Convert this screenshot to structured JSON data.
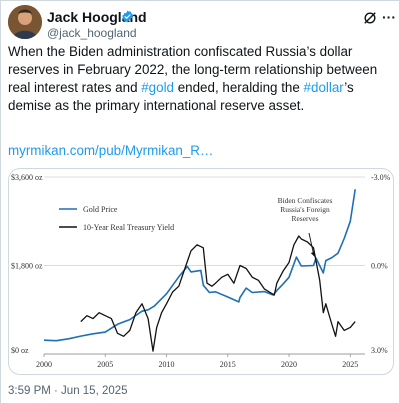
{
  "tweet": {
    "author_name": "Jack Hoogland",
    "author_handle": "@jack_hoogland",
    "verified_badge_color": "#1d9bf0",
    "body_part1": "When the Biden administration confiscated Russia’s dollar reserves in February 2022, the long-term relationship between real interest rates and ",
    "hashtag_gold": "#gold",
    "body_part2": " ended, heralding the ",
    "hashtag_dollar": "#dollar",
    "body_part3": "’s demise as the primary international reserve asset.",
    "link_text": "myrmikan.com/pub/Myrmikan_R…",
    "timestamp": "3:59 PM · Jun 15, 2025",
    "icons": {
      "grok": "grok-icon",
      "more": "more-icon",
      "verified": "verified-badge-icon"
    }
  },
  "chart_data": {
    "type": "line",
    "title": "",
    "xlabel": "",
    "ylabel": "",
    "x_ticks": [
      "2000",
      "2005",
      "2010",
      "2015",
      "2020",
      "2025"
    ],
    "xlim": [
      2000,
      2026.2
    ],
    "y_left_ticks": [
      "$3,600 oz",
      "$1,800 oz",
      "$0 oz"
    ],
    "y_left_lim": [
      0,
      3600
    ],
    "y_right_ticks": [
      "-3.0%",
      "0.0%",
      "3.0%"
    ],
    "y_right_lim": [
      3.0,
      -3.0
    ],
    "legend": {
      "placement": "top-left",
      "entries": [
        "Gold Price",
        "10-Year Real Treasury Yield"
      ]
    },
    "annotation": {
      "text_lines": [
        "Biden Confiscates",
        "Russia's Foreign",
        "Reserves"
      ],
      "x": 2022.1
    },
    "series": [
      {
        "name": "Gold Price",
        "color": "#1f6fb4",
        "axis": "left",
        "x": [
          2000,
          2001,
          2002,
          2003,
          2004,
          2005,
          2006,
          2007,
          2008,
          2008.5,
          2009,
          2010,
          2011,
          2011.7,
          2012,
          2012.8,
          2013,
          2013.5,
          2014,
          2015,
          2015.9,
          2016,
          2016.5,
          2017,
          2018,
          2018.7,
          2019,
          2019.5,
          2020,
          2020.6,
          2021,
          2022,
          2022.2,
          2022.8,
          2023,
          2023.5,
          2024,
          2024.5,
          2025,
          2025.4
        ],
        "y": [
          280,
          270,
          310,
          365,
          410,
          445,
          605,
          700,
          870,
          900,
          975,
          1225,
          1570,
          1780,
          1670,
          1700,
          1400,
          1250,
          1265,
          1160,
          1060,
          1150,
          1340,
          1250,
          1270,
          1200,
          1290,
          1420,
          1560,
          1970,
          1790,
          1800,
          1950,
          1650,
          1900,
          1960,
          2050,
          2350,
          2700,
          3350
        ]
      },
      {
        "name": "10-Year Real Treasury Yield",
        "color": "#111111",
        "axis": "right",
        "x": [
          2003,
          2003.5,
          2004,
          2004.5,
          2005,
          2005.5,
          2006,
          2006.5,
          2007,
          2007.5,
          2008,
          2008.5,
          2008.9,
          2009.2,
          2009.6,
          2010,
          2010.5,
          2011,
          2011.5,
          2012,
          2012.5,
          2013,
          2013.3,
          2013.7,
          2014,
          2014.5,
          2015,
          2015.5,
          2016,
          2016.5,
          2017,
          2017.5,
          2018,
          2018.8,
          2019,
          2019.5,
          2020,
          2020.4,
          2020.8,
          2021,
          2021.5,
          2022,
          2022.5,
          2022.8,
          2023,
          2023.5,
          2023.8,
          2024,
          2024.5,
          2025,
          2025.4
        ],
        "y": [
          1.9,
          1.7,
          1.8,
          1.6,
          1.7,
          1.8,
          2.3,
          2.4,
          2.2,
          1.6,
          1.3,
          1.8,
          2.9,
          2.1,
          1.6,
          1.3,
          0.9,
          0.7,
          0.1,
          -0.5,
          -0.7,
          -0.6,
          0.6,
          0.7,
          0.6,
          0.4,
          0.3,
          0.6,
          0.0,
          0.1,
          0.4,
          0.5,
          0.8,
          1.0,
          0.6,
          0.2,
          -0.1,
          -0.7,
          -1.0,
          -0.9,
          -0.8,
          -0.6,
          0.5,
          1.6,
          1.3,
          2.0,
          2.4,
          1.9,
          2.2,
          2.1,
          1.9
        ]
      }
    ]
  }
}
